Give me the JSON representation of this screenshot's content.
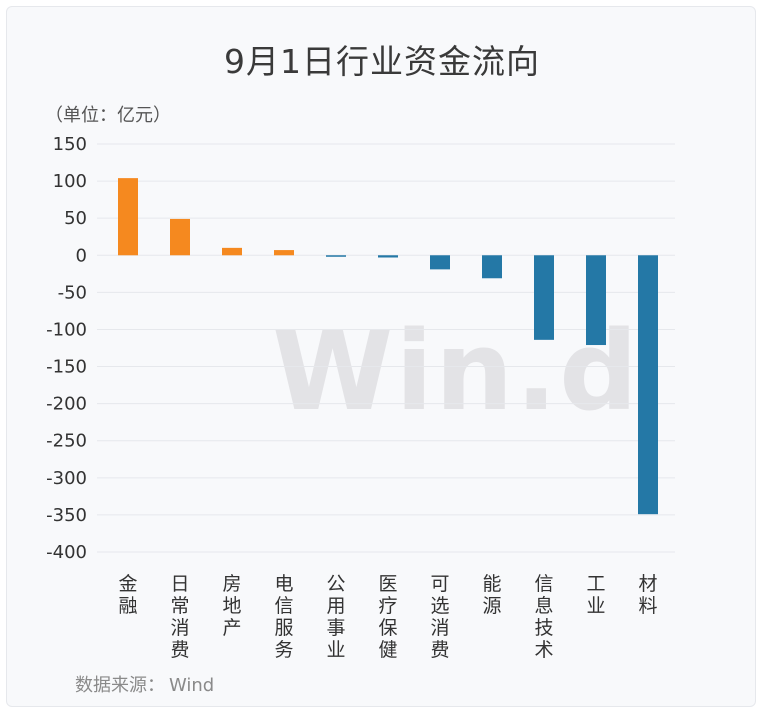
{
  "title": "9月1日行业资金流向",
  "unit_label": "（单位：亿元）",
  "source": {
    "label": "数据来源：",
    "value": "Wind"
  },
  "watermark": "Win.d",
  "chart_data": {
    "type": "bar",
    "title": "9月1日行业资金流向",
    "xlabel": "",
    "ylabel": "",
    "ylim": [
      -400,
      150
    ],
    "yticks": [
      150,
      100,
      50,
      0,
      -50,
      -100,
      -150,
      -200,
      -250,
      -300,
      -350,
      -400
    ],
    "categories": [
      "金融",
      "日常消费",
      "房地产",
      "电信服务",
      "公用事业",
      "医疗保健",
      "可选消费",
      "能源",
      "信息技术",
      "工业",
      "材料"
    ],
    "values": [
      104,
      49,
      10,
      7,
      -2,
      -3,
      -19,
      -31,
      -114,
      -121,
      -349
    ],
    "colors": {
      "positive": "#f5891f",
      "negative": "#2478a6",
      "grid": "#e6e8ec"
    },
    "grid": true,
    "legend": "none"
  }
}
